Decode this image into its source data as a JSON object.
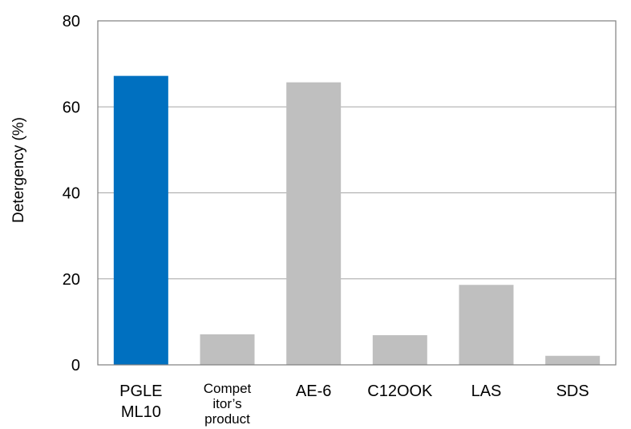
{
  "chart_data": {
    "type": "bar",
    "title": "",
    "xlabel": "",
    "ylabel": "Detergency (%)",
    "ylim": [
      0,
      80
    ],
    "yticks": [
      0,
      20,
      40,
      60,
      80
    ],
    "grid": true,
    "legend": "none",
    "categories": [
      {
        "lines": [
          "PGLE",
          "ML10"
        ],
        "small": false
      },
      {
        "lines": [
          "Compet",
          "itor’s",
          "product"
        ],
        "small": true
      },
      {
        "lines": [
          "AE-6"
        ],
        "small": false
      },
      {
        "lines": [
          "C12OOK"
        ],
        "small": false
      },
      {
        "lines": [
          "LAS"
        ],
        "small": false
      },
      {
        "lines": [
          "SDS"
        ],
        "small": false
      }
    ],
    "values": [
      67.2,
      7.1,
      65.7,
      6.9,
      18.6,
      2.1
    ],
    "colors": [
      "#0070C0",
      "#BFBFBF",
      "#BFBFBF",
      "#BFBFBF",
      "#BFBFBF",
      "#BFBFBF"
    ]
  }
}
